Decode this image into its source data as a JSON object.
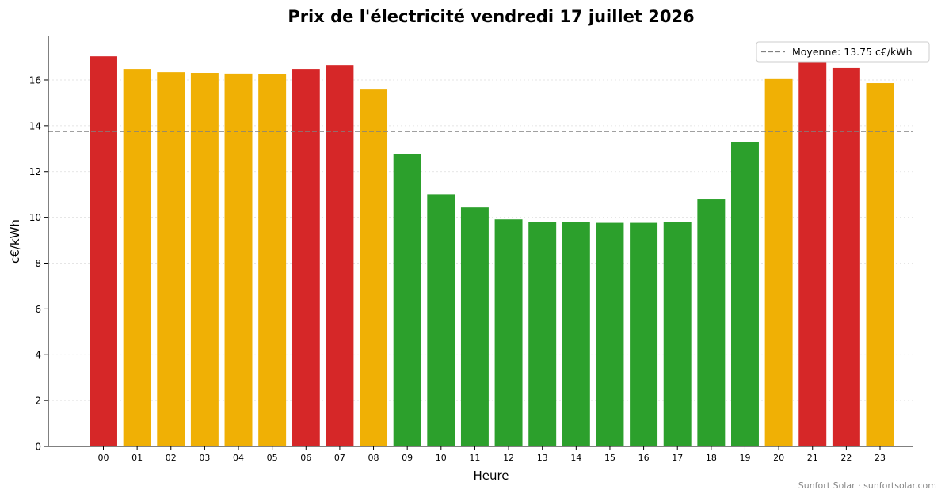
{
  "chart_data": {
    "type": "bar",
    "title": "Prix de l'électricité vendredi 17 juillet 2026",
    "xlabel": "Heure",
    "ylabel": "c€/kWh",
    "ylim": [
      0,
      17.9
    ],
    "yticks": [
      0,
      2,
      4,
      6,
      8,
      10,
      12,
      14,
      16
    ],
    "grid": "horizontal dotted",
    "categories": [
      "00",
      "01",
      "02",
      "03",
      "04",
      "05",
      "06",
      "07",
      "08",
      "09",
      "10",
      "11",
      "12",
      "13",
      "14",
      "15",
      "16",
      "17",
      "18",
      "19",
      "20",
      "21",
      "22",
      "23"
    ],
    "values": [
      17.03,
      16.48,
      16.34,
      16.31,
      16.28,
      16.27,
      16.48,
      16.65,
      15.58,
      12.78,
      11.01,
      10.43,
      9.91,
      9.81,
      9.8,
      9.76,
      9.76,
      9.81,
      10.78,
      13.3,
      16.04,
      16.8,
      16.52,
      15.86
    ],
    "bar_colors": [
      "#d62728",
      "#f0b005",
      "#f0b005",
      "#f0b005",
      "#f0b005",
      "#f0b005",
      "#d62728",
      "#d62728",
      "#f0b005",
      "#2ca02c",
      "#2ca02c",
      "#2ca02c",
      "#2ca02c",
      "#2ca02c",
      "#2ca02c",
      "#2ca02c",
      "#2ca02c",
      "#2ca02c",
      "#2ca02c",
      "#2ca02c",
      "#f0b005",
      "#d62728",
      "#d62728",
      "#f0b005"
    ],
    "average": {
      "value": 13.75,
      "label": "Moyenne: 13.75 c€/kWh",
      "color": "#808080"
    },
    "legend_position": "top-right"
  },
  "footer": "Sunfort Solar · sunfortsolar.com"
}
